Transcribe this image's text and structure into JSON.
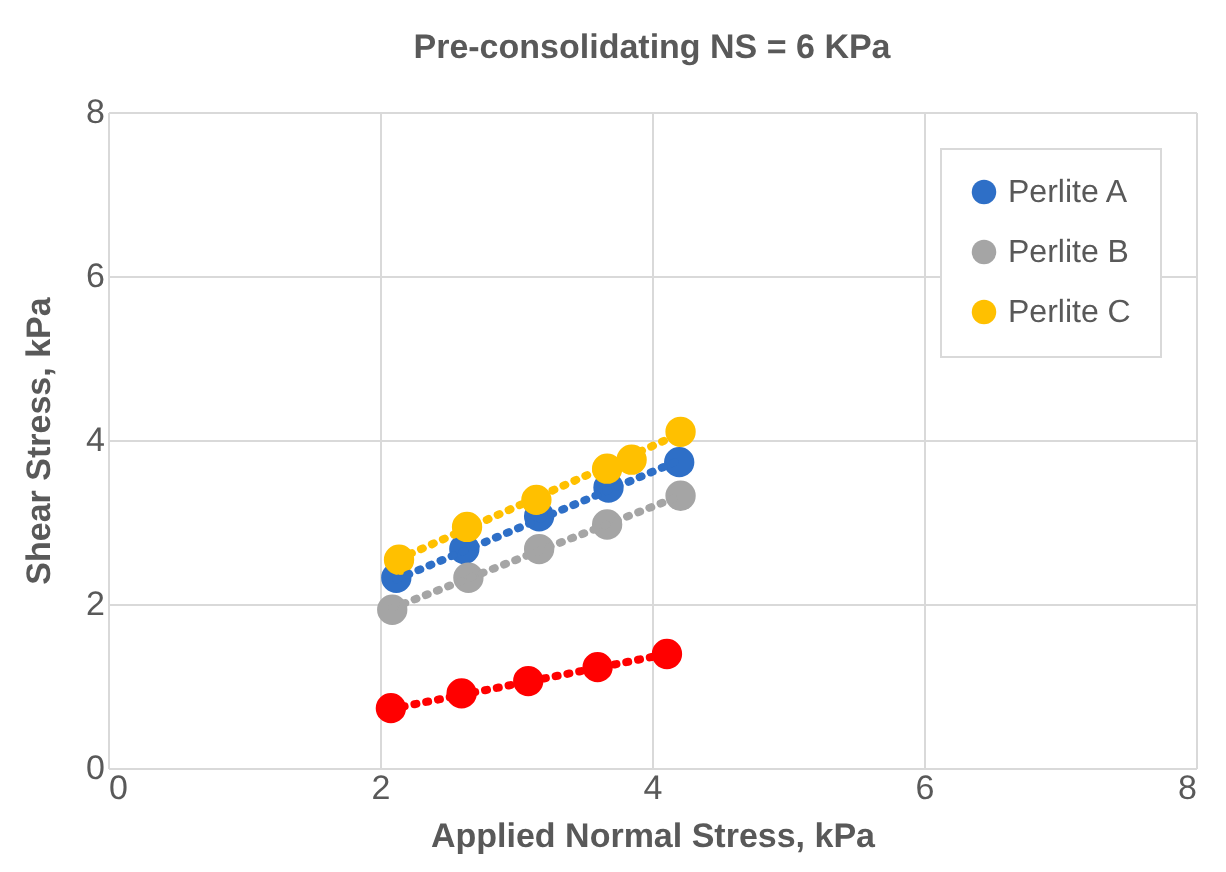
{
  "chart_data": {
    "type": "scatter",
    "title": "Pre-consolidating NS = 6 KPa",
    "xlabel": "Applied Normal Stress, kPa",
    "ylabel": "Shear  Stress, kPa",
    "xlim": [
      0,
      8
    ],
    "ylim": [
      0,
      8
    ],
    "xticks": [
      0,
      2,
      4,
      6,
      8
    ],
    "yticks": [
      0,
      2,
      4,
      6,
      8
    ],
    "grid": true,
    "legend": "top right",
    "marker": "circle",
    "series": [
      {
        "color": "#ff0000",
        "x": [
          2.08,
          2.6,
          3.09,
          3.6,
          4.11
        ],
        "values": [
          0.73,
          0.91,
          1.06,
          1.23,
          1.39
        ]
      },
      {
        "name": "Perlite A",
        "color": "#2e6fc7",
        "x": [
          2.12,
          2.62,
          3.17,
          3.68,
          4.2
        ],
        "values": [
          2.32,
          2.67,
          3.07,
          3.42,
          3.73
        ]
      },
      {
        "name": "Perlite B",
        "color": "#a5a5a5",
        "x": [
          2.09,
          2.65,
          3.17,
          3.67,
          4.21
        ],
        "values": [
          1.93,
          2.32,
          2.67,
          2.97,
          3.32
        ]
      },
      {
        "name": "Perlite C",
        "color": "#ffc000",
        "x": [
          2.14,
          2.64,
          3.15,
          3.67,
          3.85,
          4.21
        ],
        "values": [
          2.54,
          2.94,
          3.27,
          3.65,
          3.76,
          4.1
        ]
      },
      {
        "type": "line",
        "marker": "none",
        "line_style": "dotted",
        "color": "#ff0000",
        "x": [
          2.08,
          4.11
        ],
        "values": [
          0.72,
          1.39
        ]
      },
      {
        "type": "line",
        "marker": "none",
        "line_style": "dotted",
        "color": "#2e6fc7",
        "x": [
          2.12,
          4.2
        ],
        "values": [
          2.3,
          3.75
        ]
      },
      {
        "type": "line",
        "marker": "none",
        "line_style": "dotted",
        "color": "#a5a5a5",
        "x": [
          2.09,
          4.21
        ],
        "values": [
          1.95,
          3.32
        ]
      },
      {
        "type": "line",
        "marker": "none",
        "line_style": "dotted",
        "color": "#ffc000",
        "x": [
          2.14,
          4.21
        ],
        "values": [
          2.55,
          4.08
        ]
      }
    ]
  }
}
